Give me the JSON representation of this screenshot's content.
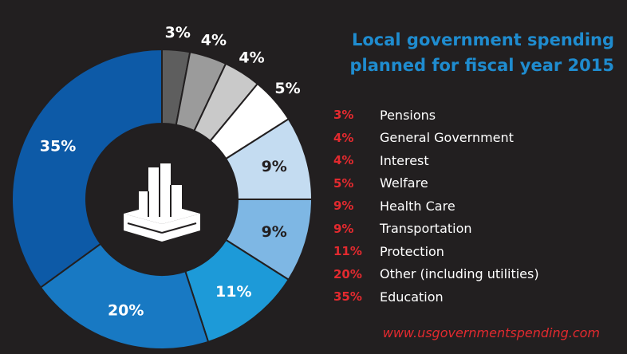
{
  "chart_data": {
    "type": "pie",
    "title_line1": "Local government spending",
    "title_line2": "planned for fiscal year 2015",
    "slices": [
      {
        "label": "Pensions",
        "pct_label": "3%",
        "value": 3,
        "color": "#5e5e5e",
        "label_color": "#ffffff"
      },
      {
        "label": "General Government",
        "pct_label": "4%",
        "value": 4,
        "color": "#9b9b9b",
        "label_color": "#ffffff"
      },
      {
        "label": "Interest",
        "pct_label": "4%",
        "value": 4,
        "color": "#c9c9c9",
        "label_color": "#ffffff"
      },
      {
        "label": "Welfare",
        "pct_label": "5%",
        "value": 5,
        "color": "#ffffff",
        "label_color": "#ffffff"
      },
      {
        "label": "Health Care",
        "pct_label": "9%",
        "value": 9,
        "color": "#c4dcf1",
        "label_color": "#231f20"
      },
      {
        "label": "Transportation",
        "pct_label": "9%",
        "value": 9,
        "color": "#7eb7e4",
        "label_color": "#231f20"
      },
      {
        "label": "Protection",
        "pct_label": "11%",
        "value": 11,
        "color": "#1d9ad8",
        "label_color": "#ffffff"
      },
      {
        "label": "Other (including utilities)",
        "pct_label": "20%",
        "value": 20,
        "color": "#1879c3",
        "label_color": "#ffffff"
      },
      {
        "label": "Education",
        "pct_label": "35%",
        "value": 35,
        "color": "#0d5aa7",
        "label_color": "#ffffff"
      }
    ],
    "legend_placement": "right",
    "center_icon": "city-buildings-icon"
  },
  "source": "www.usgovernmentspending.com"
}
